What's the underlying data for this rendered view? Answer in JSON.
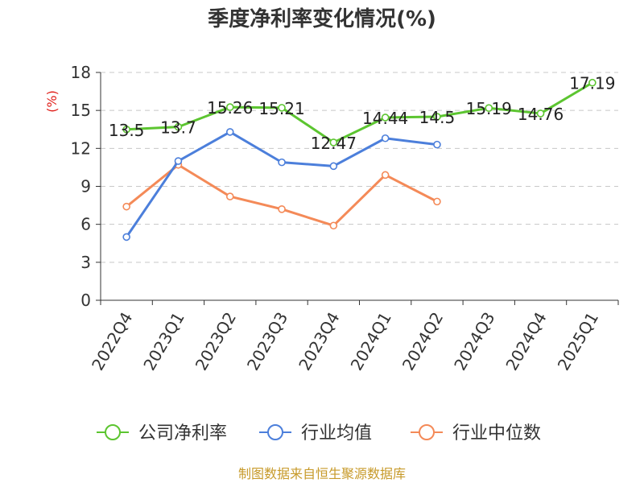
{
  "chart_data": {
    "type": "line",
    "title": "季度净利率变化情况(%)",
    "ylabel": "(%)",
    "xlabel": "",
    "ylim": [
      0,
      18
    ],
    "yticks": [
      0,
      3,
      6,
      9,
      12,
      15,
      18
    ],
    "grid": true,
    "legend_position": "bottom",
    "categories": [
      "2022Q4",
      "2023Q1",
      "2023Q2",
      "2023Q3",
      "2023Q4",
      "2024Q1",
      "2024Q2",
      "2024Q3",
      "2024Q4",
      "2025Q1"
    ],
    "series": [
      {
        "name": "公司净利率",
        "color": "#5cc530",
        "values": [
          13.5,
          13.7,
          15.26,
          15.21,
          12.47,
          14.44,
          14.5,
          15.19,
          14.76,
          17.19
        ],
        "labels": [
          "13.5",
          "13.7",
          "15.26",
          "15.21",
          "12.47",
          "14.44",
          "14.5",
          "15.19",
          "14.76",
          "17.19"
        ]
      },
      {
        "name": "行业均值",
        "color": "#4c7fdb",
        "values": [
          5.0,
          11.0,
          13.3,
          10.9,
          10.6,
          12.8,
          12.3,
          null,
          null,
          null
        ]
      },
      {
        "name": "行业中位数",
        "color": "#f48a58",
        "values": [
          7.4,
          10.7,
          8.2,
          7.2,
          5.9,
          9.9,
          7.8,
          null,
          null,
          null
        ]
      }
    ]
  },
  "source": "制图数据来自恒生聚源数据库"
}
